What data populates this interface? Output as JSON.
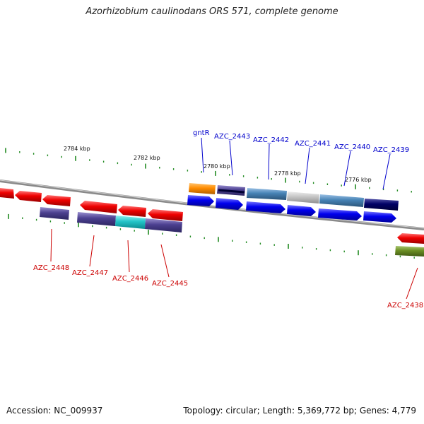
{
  "title": "Azorhizobium caulinodans ORS 571, complete genome",
  "footer": {
    "accession": "Accession: NC_009937",
    "stats": "Topology: circular; Length: 5,369,772 bp; Genes: 4,779"
  },
  "scale_labels": [
    "2784 kbp",
    "2782 kbp",
    "2780 kbp",
    "2778 kbp",
    "2776 kbp"
  ],
  "top_labels": [
    "gntR",
    "AZC_2443",
    "AZC_2442",
    "AZC_2441",
    "AZC_2440",
    "AZC_2439"
  ],
  "bottom_labels": [
    "AZC_2448",
    "AZC_2447",
    "AZC_2446",
    "AZC_2445",
    "AZC_2438"
  ],
  "colors": {
    "forward_label": "#0000cc",
    "reverse_label": "#cc0000",
    "cds_forward": "#0000ee",
    "cds_reverse": "#ee0000",
    "tick": "#228b22",
    "backbone": "#888888"
  }
}
